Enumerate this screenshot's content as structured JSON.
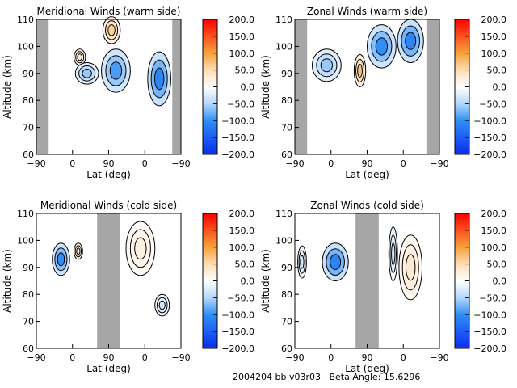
{
  "colors": {
    "gap": "#a6a6a6",
    "neg_strong": "#0b2cf0",
    "neg_mid": "#2f8ff5",
    "neg_light": "#cfe6fb",
    "zero": "#ffffff",
    "pos_light": "#fde6cc",
    "pos_mid": "#f7a13a",
    "pos_strong": "#ff0000"
  },
  "footer": {
    "date_version": "2004204 bb v03r03",
    "beta_label": "Beta Angle:",
    "beta_value": "15.6296"
  },
  "colorbar": {
    "ticks": [
      "200.0",
      "150.0",
      "100.0",
      "50.0",
      "0.0",
      "−50.0",
      "−100.0",
      "−150.0",
      "−200.0"
    ],
    "range": [
      -200,
      200
    ]
  },
  "chart_data": [
    {
      "type": "heatmap",
      "title": "Meridional Winds (warm side)",
      "xlabel": "Lat (deg)",
      "ylabel": "Altitude (km)",
      "xticks": [
        "−90",
        "0",
        "90",
        "0",
        "−90"
      ],
      "yticks": [
        "110",
        "100",
        "90",
        "80",
        "70",
        "60"
      ],
      "ylim": [
        60,
        110
      ],
      "gaps": [
        [
          0,
          0.085
        ],
        [
          0.94,
          1
        ]
      ],
      "blobs": [
        {
          "cx": 0.55,
          "cy": 91,
          "rx": 0.1,
          "ry": 8,
          "v": -90
        },
        {
          "cx": 0.85,
          "cy": 88,
          "rx": 0.08,
          "ry": 10,
          "v": -110
        },
        {
          "cx": 0.3,
          "cy": 96,
          "rx": 0.04,
          "ry": 3,
          "v": 30
        },
        {
          "cx": 0.52,
          "cy": 106,
          "rx": 0.06,
          "ry": 5,
          "v": 60
        },
        {
          "cx": 0.35,
          "cy": 90,
          "rx": 0.08,
          "ry": 4,
          "v": -60
        }
      ]
    },
    {
      "type": "heatmap",
      "title": "Zonal Winds (warm side)",
      "xlabel": "Lat (deg)",
      "ylabel": "Altitude (km)",
      "xticks": [
        "−90",
        "0",
        "90",
        "0",
        "−90"
      ],
      "yticks": [
        "110",
        "100",
        "90",
        "80",
        "70",
        "60"
      ],
      "ylim": [
        60,
        110
      ],
      "gaps": [
        [
          0,
          0.085
        ],
        [
          0.91,
          1
        ]
      ],
      "blobs": [
        {
          "cx": 0.6,
          "cy": 100,
          "rx": 0.1,
          "ry": 8,
          "v": -100
        },
        {
          "cx": 0.8,
          "cy": 102,
          "rx": 0.09,
          "ry": 8,
          "v": -110
        },
        {
          "cx": 0.45,
          "cy": 91,
          "rx": 0.04,
          "ry": 6,
          "v": 70
        },
        {
          "cx": 0.22,
          "cy": 93,
          "rx": 0.1,
          "ry": 6,
          "v": -60
        }
      ]
    },
    {
      "type": "heatmap",
      "title": "Meridional Winds (cold side)",
      "xlabel": "Lat (deg)",
      "ylabel": "Altitude (km)",
      "xticks": [
        "−90",
        "0",
        "90",
        "0",
        "−90"
      ],
      "yticks": [
        "110",
        "100",
        "90",
        "80",
        "70",
        "60"
      ],
      "ylim": [
        60,
        110
      ],
      "gaps": [
        [
          0.42,
          0.58
        ]
      ],
      "blobs": [
        {
          "cx": 0.17,
          "cy": 93,
          "rx": 0.06,
          "ry": 6,
          "v": -100
        },
        {
          "cx": 0.29,
          "cy": 96,
          "rx": 0.03,
          "ry": 3,
          "v": 40
        },
        {
          "cx": 0.72,
          "cy": 97,
          "rx": 0.1,
          "ry": 10,
          "v": 20
        },
        {
          "cx": 0.87,
          "cy": 76,
          "rx": 0.05,
          "ry": 4,
          "v": -30
        }
      ]
    },
    {
      "type": "heatmap",
      "title": "Zonal Winds (cold side)",
      "xlabel": "Lat (deg)",
      "ylabel": "Altitude (km)",
      "xticks": [
        "−90",
        "0",
        "90",
        "0",
        "−90"
      ],
      "yticks": [
        "110",
        "100",
        "90",
        "80",
        "70",
        "60"
      ],
      "ylim": [
        60,
        110
      ],
      "gaps": [
        [
          0.42,
          0.58
        ]
      ],
      "blobs": [
        {
          "cx": 0.28,
          "cy": 92,
          "rx": 0.09,
          "ry": 7,
          "v": -110
        },
        {
          "cx": 0.05,
          "cy": 92,
          "rx": 0.03,
          "ry": 6,
          "v": -30
        },
        {
          "cx": 0.8,
          "cy": 90,
          "rx": 0.08,
          "ry": 12,
          "v": 30
        },
        {
          "cx": 0.68,
          "cy": 95,
          "rx": 0.03,
          "ry": 10,
          "v": -30
        }
      ]
    }
  ]
}
